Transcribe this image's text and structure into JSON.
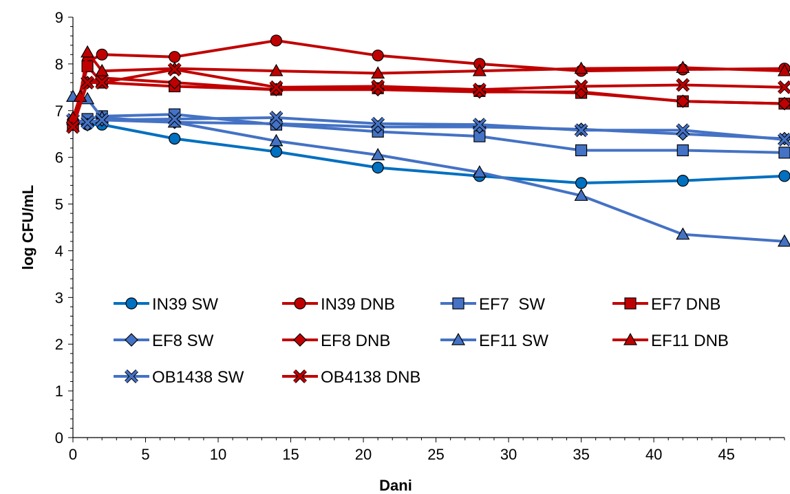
{
  "chart_data": {
    "type": "line",
    "xlabel": "Dani",
    "ylabel": "log CFU/mL",
    "xlim": [
      0,
      49
    ],
    "ylim": [
      0,
      9
    ],
    "x_ticks": [
      0,
      5,
      10,
      15,
      20,
      25,
      30,
      35,
      40,
      45
    ],
    "y_ticks": [
      0,
      1,
      2,
      3,
      4,
      5,
      6,
      7,
      8,
      9
    ],
    "grid": false,
    "legend_position": "bottom-left, inside plot",
    "colors": {
      "sw": "#4472C4",
      "in39sw": "#0070C0",
      "dnb": "#C00000",
      "marker_sw": "#4472C4",
      "marker_dnb": "#C00000"
    },
    "series": [
      {
        "name": "IN39 SW",
        "marker": "circle",
        "color": "#0070C0",
        "x": [
          0,
          1,
          2,
          7,
          14,
          21,
          28,
          35,
          42,
          49
        ],
        "y": [
          6.78,
          6.7,
          6.7,
          6.4,
          6.12,
          5.78,
          5.6,
          5.45,
          5.5,
          5.6
        ]
      },
      {
        "name": "IN39 DNB",
        "marker": "circle",
        "color": "#C00000",
        "x": [
          0,
          1,
          2,
          7,
          14,
          21,
          28,
          35,
          42,
          49
        ],
        "y": [
          6.7,
          8.05,
          8.2,
          8.15,
          8.5,
          8.18,
          8.0,
          7.85,
          7.88,
          7.9
        ]
      },
      {
        "name": "EF7  SW",
        "marker": "square",
        "color": "#4472C4",
        "x": [
          0,
          1,
          2,
          7,
          14,
          21,
          28,
          35,
          42,
          49
        ],
        "y": [
          6.7,
          6.82,
          6.88,
          6.92,
          6.7,
          6.55,
          6.45,
          6.15,
          6.15,
          6.1
        ]
      },
      {
        "name": "EF7 DNB",
        "marker": "square",
        "color": "#C00000",
        "x": [
          0,
          1,
          2,
          7,
          14,
          21,
          28,
          35,
          42,
          49
        ],
        "y": [
          6.7,
          7.95,
          7.6,
          7.52,
          7.45,
          7.48,
          7.42,
          7.38,
          7.2,
          7.15
        ]
      },
      {
        "name": "EF8 SW",
        "marker": "diamond",
        "color": "#4472C4",
        "x": [
          0,
          1,
          2,
          7,
          14,
          21,
          28,
          35,
          42,
          49
        ],
        "y": [
          6.75,
          6.7,
          6.8,
          6.75,
          6.72,
          6.65,
          6.65,
          6.6,
          6.5,
          6.4
        ]
      },
      {
        "name": "EF8 DNB",
        "marker": "diamond",
        "color": "#C00000",
        "x": [
          0,
          1,
          2,
          7,
          14,
          21,
          28,
          35,
          42,
          49
        ],
        "y": [
          6.75,
          7.6,
          7.7,
          7.6,
          7.45,
          7.45,
          7.4,
          7.4,
          7.2,
          7.15
        ]
      },
      {
        "name": "EF11 SW",
        "marker": "triangle",
        "color": "#4472C4",
        "x": [
          0,
          1,
          2,
          7,
          14,
          21,
          28,
          35,
          42,
          49
        ],
        "y": [
          7.3,
          7.25,
          6.85,
          6.75,
          6.35,
          6.05,
          5.68,
          5.18,
          4.35,
          4.2
        ]
      },
      {
        "name": "EF11 DNB",
        "marker": "triangle",
        "color": "#C00000",
        "x": [
          0,
          0.5,
          1,
          2,
          7,
          14,
          21,
          28,
          35,
          42,
          49
        ],
        "y": [
          6.85,
          7.3,
          8.25,
          7.85,
          7.9,
          7.85,
          7.8,
          7.85,
          7.9,
          7.92,
          7.85
        ]
      },
      {
        "name": "OB1438 SW",
        "marker": "x",
        "color": "#4472C4",
        "x": [
          0,
          1,
          2,
          7,
          14,
          21,
          28,
          35,
          42,
          49
        ],
        "y": [
          6.8,
          6.75,
          6.8,
          6.82,
          6.85,
          6.72,
          6.7,
          6.58,
          6.58,
          6.38
        ]
      },
      {
        "name": "OB4138 DNB",
        "marker": "x",
        "color": "#C00000",
        "x": [
          0,
          1,
          2,
          7,
          14,
          21,
          28,
          35,
          42,
          49
        ],
        "y": [
          6.65,
          7.6,
          7.6,
          7.88,
          7.5,
          7.52,
          7.45,
          7.52,
          7.55,
          7.5
        ]
      }
    ]
  }
}
